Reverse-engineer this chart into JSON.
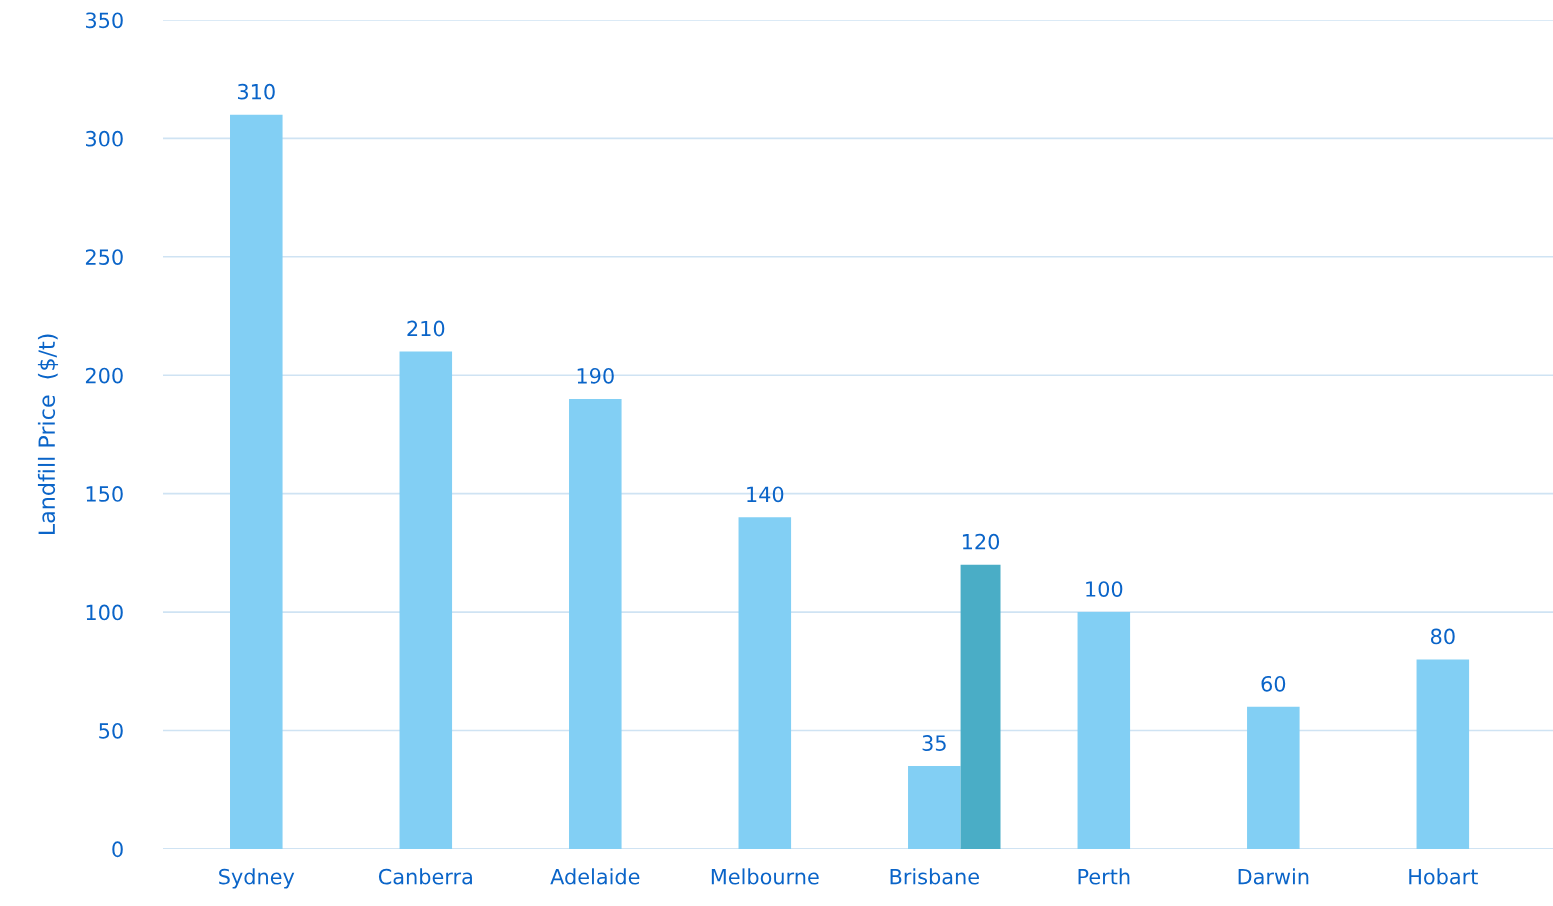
{
  "chart_data": {
    "type": "bar",
    "ylabel": "Landfill Price  ($/t)",
    "categories": [
      "Sydney",
      "Canberra",
      "Adelaide",
      "Melbourne",
      "Brisbane",
      "Perth",
      "Darwin",
      "Hobart"
    ],
    "series": [
      {
        "color": "#82cff4",
        "values": [
          310,
          210,
          190,
          140,
          35,
          100,
          60,
          80
        ]
      },
      {
        "color": "#4aadc6",
        "values": [
          null,
          null,
          null,
          null,
          120,
          null,
          null,
          null
        ]
      }
    ],
    "ylim": [
      0,
      350
    ],
    "yticks": [
      0,
      50,
      100,
      150,
      200,
      250,
      300,
      350
    ],
    "grid": "y",
    "data_labels": true
  }
}
